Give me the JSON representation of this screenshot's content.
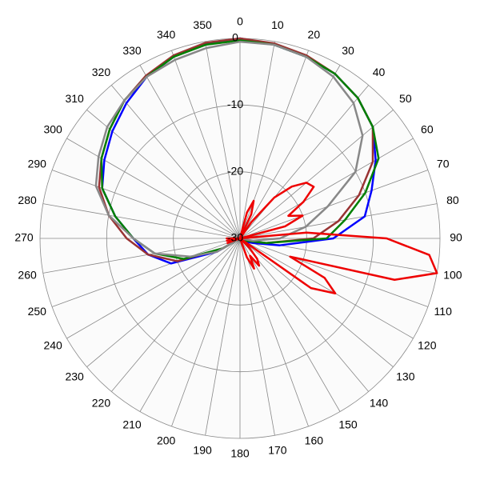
{
  "chart_data": {
    "type": "polar",
    "thetaticks": [
      0,
      10,
      20,
      30,
      40,
      50,
      60,
      70,
      80,
      90,
      100,
      110,
      120,
      130,
      140,
      150,
      160,
      170,
      180,
      190,
      200,
      210,
      220,
      230,
      240,
      250,
      260,
      270,
      280,
      290,
      300,
      310,
      320,
      330,
      340,
      350
    ],
    "rlim": [
      -30,
      0
    ],
    "rticks": [
      -30,
      -20,
      -10,
      0
    ],
    "series": [
      {
        "color": "#0000ff",
        "theta": [
          0,
          10,
          20,
          30,
          40,
          50,
          60,
          70,
          80,
          90,
          100,
          110,
          120,
          130,
          140,
          150,
          160,
          170,
          180,
          190,
          200,
          210,
          220,
          230,
          240,
          250,
          260,
          270,
          280,
          290,
          300,
          310,
          320,
          330,
          340,
          350
        ],
        "values": [
          0,
          -0.5,
          -1,
          -1.5,
          -2.5,
          -4,
          -6.5,
          -9,
          -11,
          -16,
          -24,
          -28,
          -29,
          -30,
          -30,
          -30,
          -30,
          -30,
          -30,
          -30,
          -30,
          -30,
          -30,
          -30,
          -26,
          -19,
          -16,
          -14,
          -11,
          -8,
          -6.5,
          -5,
          -3.5,
          -2,
          -1,
          -0.3
        ]
      },
      {
        "color": "#993333",
        "theta": [
          0,
          10,
          20,
          30,
          40,
          50,
          60,
          70,
          80,
          90,
          100,
          110,
          120,
          130,
          140,
          150,
          160,
          170,
          180,
          190,
          200,
          210,
          220,
          230,
          240,
          250,
          260,
          270,
          280,
          290,
          300,
          310,
          320,
          330,
          340,
          350
        ],
        "values": [
          0,
          -0.3,
          -0.8,
          -1.5,
          -2.5,
          -4,
          -7,
          -11,
          -15,
          -19,
          -26,
          -29,
          -30,
          -30,
          -30,
          -30,
          -30,
          -30,
          -30,
          -30,
          -30,
          -30,
          -30,
          -30,
          -27,
          -20,
          -16,
          -13,
          -10,
          -7.5,
          -6,
          -4.5,
          -3,
          -1.8,
          -0.8,
          -0.2
        ]
      },
      {
        "color": "#008000",
        "theta": [
          0,
          10,
          20,
          30,
          40,
          50,
          60,
          70,
          80,
          90,
          100,
          110,
          120,
          130,
          140,
          150,
          160,
          170,
          180,
          190,
          200,
          210,
          220,
          230,
          240,
          250,
          260,
          270,
          280,
          290,
          300,
          310,
          320,
          330,
          340,
          350
        ],
        "values": [
          -0.3,
          -0.5,
          -1,
          -1.5,
          -2.5,
          -4,
          -6,
          -10,
          -14,
          -17,
          -26,
          -29,
          -30,
          -30,
          -30,
          -30,
          -30,
          -30,
          -30,
          -30,
          -30,
          -30,
          -30,
          -30,
          -27,
          -21,
          -17,
          -14,
          -11,
          -8,
          -6,
          -4.5,
          -3,
          -2,
          -1,
          -0.5
        ]
      },
      {
        "color": "#888888",
        "theta": [
          0,
          10,
          20,
          30,
          40,
          50,
          60,
          70,
          80,
          90,
          100,
          110,
          120,
          130,
          140,
          150,
          160,
          170,
          180,
          190,
          200,
          210,
          220,
          230,
          240,
          250,
          260,
          270,
          280,
          290,
          300,
          310,
          320,
          330,
          340,
          350
        ],
        "values": [
          -0.5,
          -0.5,
          -1,
          -2,
          -3.5,
          -6,
          -10,
          -16,
          -20,
          -24,
          -28,
          -30,
          -30,
          -30,
          -30,
          -30,
          -30,
          -30,
          -30,
          -30,
          -30,
          -30,
          -30,
          -30,
          -26,
          -22,
          -17,
          -14,
          -10,
          -7,
          -5.5,
          -4,
          -3,
          -2,
          -1.5,
          -1
        ]
      },
      {
        "color": "#ee0000",
        "theta": [
          0,
          5,
          10,
          15,
          20,
          25,
          30,
          35,
          40,
          45,
          50,
          55,
          60,
          65,
          70,
          75,
          80,
          85,
          90,
          95,
          100,
          105,
          110,
          115,
          120,
          125,
          130,
          135,
          140,
          145,
          150,
          155,
          160,
          165,
          170,
          175,
          180,
          185,
          190,
          195,
          200,
          205,
          210,
          215,
          220,
          225,
          230,
          235,
          240,
          245,
          250,
          255,
          260,
          265,
          270,
          275,
          280,
          285,
          290,
          295,
          300,
          305,
          310,
          315,
          320,
          325,
          330,
          335,
          340,
          345,
          350,
          355
        ],
        "values": [
          -30,
          -30,
          -30,
          -26,
          -24,
          -26,
          -30,
          -27,
          -22,
          -19,
          -17,
          -16.5,
          -19,
          -22,
          -20,
          -23,
          -30,
          -20,
          -8,
          -1.5,
          0,
          -6,
          -22,
          -16,
          -13.5,
          -17,
          -30,
          -28,
          -26,
          -25,
          -27,
          -25,
          -27,
          -30,
          -30,
          -30,
          -30,
          -30,
          -30,
          -30,
          -30,
          -30,
          -30,
          -30,
          -30,
          -30,
          -30,
          -30,
          -30,
          -30,
          -28,
          -30,
          -28,
          -30,
          -28,
          -30,
          -30,
          -30,
          -30,
          -30,
          -30,
          -30,
          -30,
          -30,
          -30,
          -30,
          -30,
          -30,
          -30,
          -30,
          -30,
          -30
        ]
      }
    ]
  }
}
